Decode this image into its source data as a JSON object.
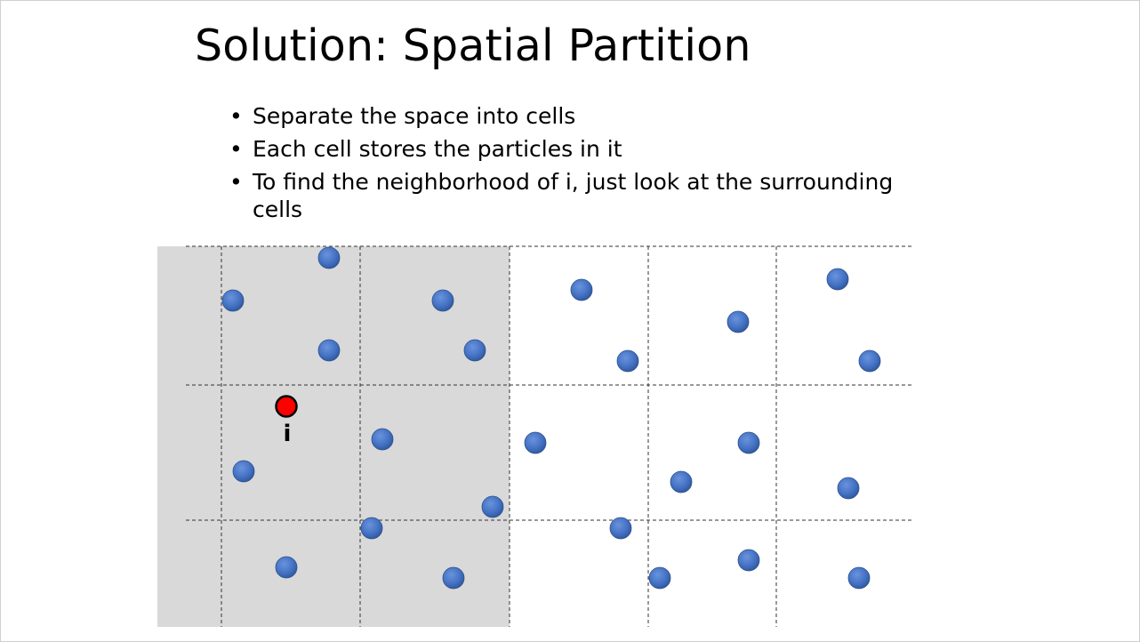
{
  "slide": {
    "title": "Solution: Spatial Partition",
    "bullets": [
      "Separate the space into cells",
      "Each cell stores the particles in it",
      "To find the neighborhood of i, just look at the surrounding cells"
    ]
  },
  "diagram": {
    "query_particle_label": "i",
    "colors": {
      "highlight": "#d9d9d9",
      "particle": "#4472c4",
      "query_particle": "#ff0000",
      "grid_line": "#333333"
    }
  }
}
